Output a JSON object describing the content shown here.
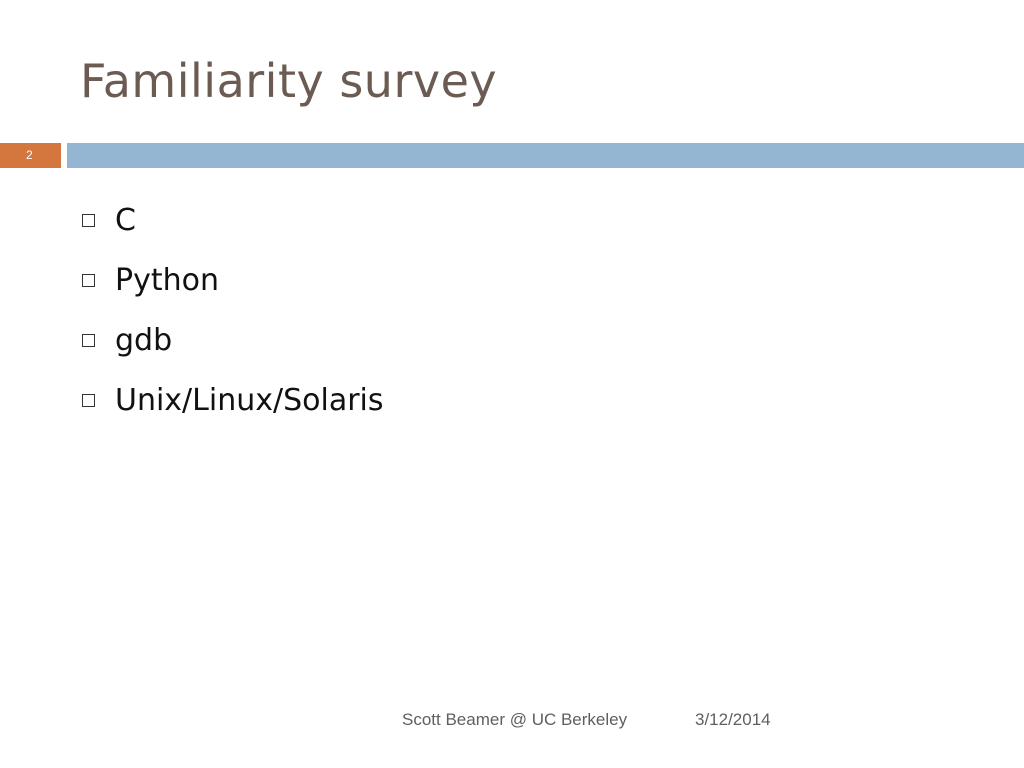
{
  "slide": {
    "title": "Familiarity survey",
    "page_number": "2",
    "bullets": [
      {
        "text": "C"
      },
      {
        "text": "Python"
      },
      {
        "text": "gdb"
      },
      {
        "text": "Unix/Linux/Solaris"
      }
    ],
    "footer": {
      "author": "Scott Beamer @ UC Berkeley",
      "date": "3/12/2014"
    }
  },
  "colors": {
    "title": "#6b5b52",
    "accent_orange": "#d4773e",
    "accent_blue": "#94b6d2",
    "footer_text": "#5f5f5f"
  }
}
